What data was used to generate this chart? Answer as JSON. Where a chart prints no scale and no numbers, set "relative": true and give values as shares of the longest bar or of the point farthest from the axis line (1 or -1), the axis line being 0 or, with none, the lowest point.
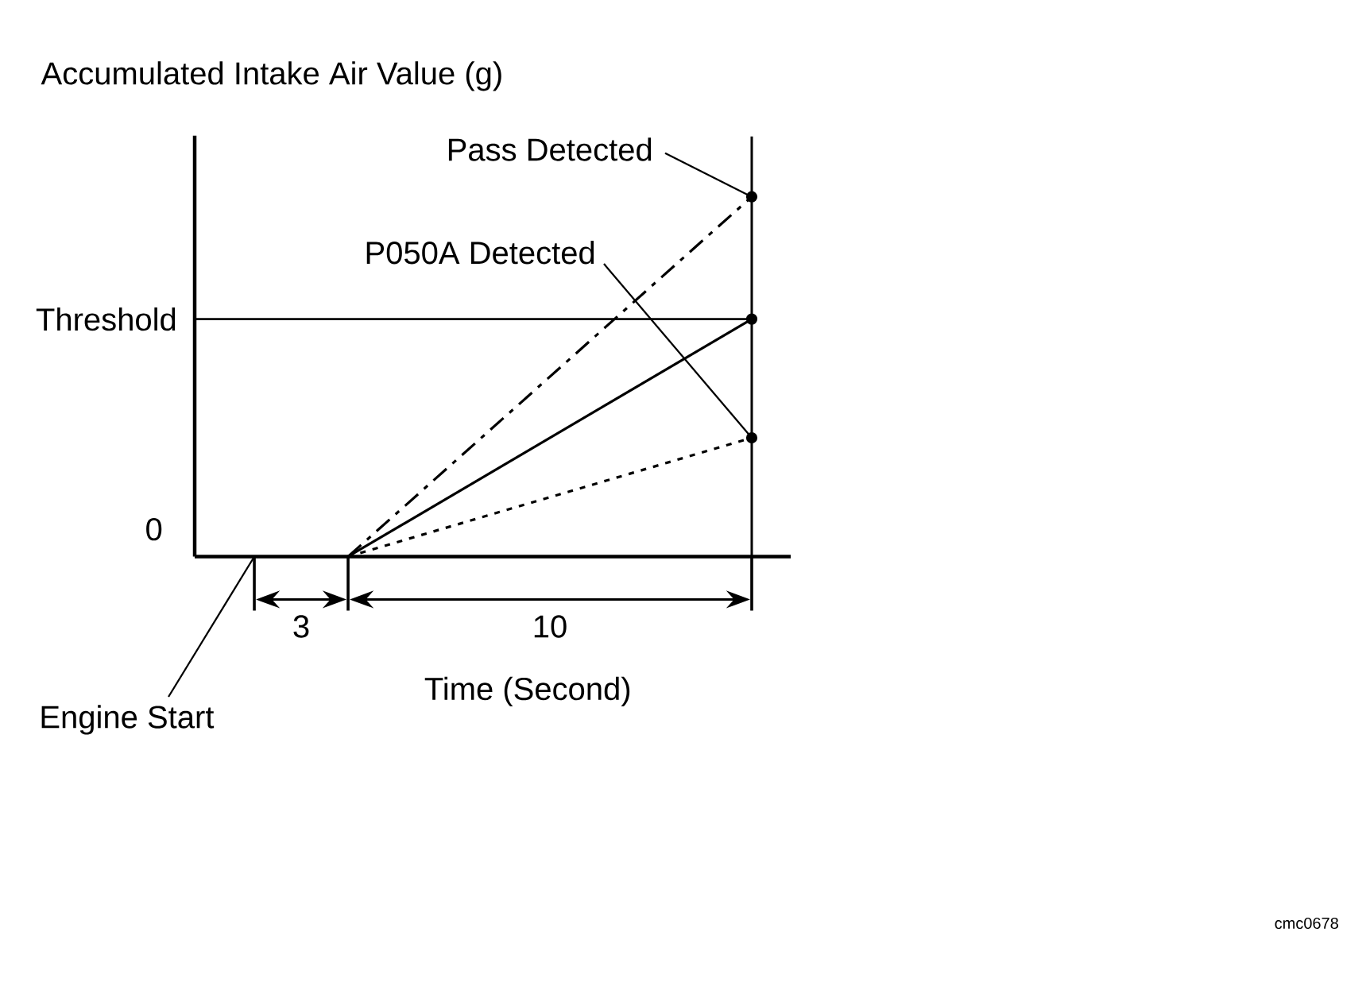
{
  "chart_data": {
    "type": "line",
    "ylabel": "Accumulated Intake Air Value (g)",
    "xlabel": "Time (Second)",
    "relative": true,
    "categories": [
      null,
      null
    ],
    "marker": "circle",
    "series": [
      {
        "name": "Pass Detected",
        "color": "#000000",
        "line_style": "dashdot",
        "values": [
          0,
          1
        ]
      },
      {
        "color": "#000000",
        "line_style": "solid",
        "values": [
          0,
          0.66
        ]
      },
      {
        "name": "P050A Detected",
        "color": "#000000",
        "line_style": "dotted",
        "values": [
          0,
          0.33
        ]
      }
    ],
    "ref_lines": [
      {
        "axis": "y",
        "value": 0.66,
        "label": "Threshold"
      },
      {
        "axis": "y",
        "value": 0,
        "label": "0"
      }
    ],
    "annotations": [
      "3",
      "10",
      "Engine Start",
      "cmc0678"
    ]
  }
}
